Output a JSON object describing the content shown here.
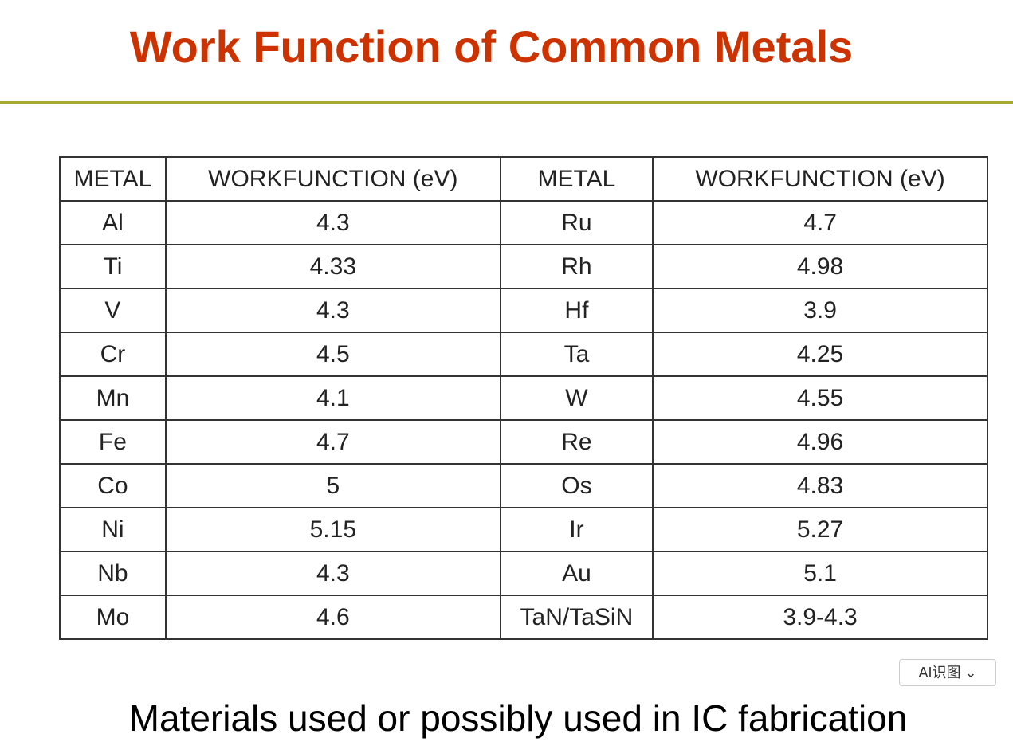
{
  "header": {
    "title": "Work Function of Common Metals"
  },
  "table": {
    "headers": [
      "METAL",
      "WORKFUNCTION (eV)",
      "METAL",
      "WORKFUNCTION (eV)"
    ],
    "rows": [
      [
        "Al",
        "4.3",
        "Ru",
        "4.7"
      ],
      [
        "Ti",
        "4.33",
        "Rh",
        "4.98"
      ],
      [
        "V",
        "4.3",
        "Hf",
        "3.9"
      ],
      [
        "Cr",
        "4.5",
        "Ta",
        "4.25"
      ],
      [
        "Mn",
        "4.1",
        "W",
        "4.55"
      ],
      [
        "Fe",
        "4.7",
        "Re",
        "4.96"
      ],
      [
        "Co",
        "5",
        "Os",
        "4.83"
      ],
      [
        "Ni",
        "5.15",
        "Ir",
        "5.27"
      ],
      [
        "Nb",
        "4.3",
        "Au",
        "5.1"
      ],
      [
        "Mo",
        "4.6",
        "TaN/TaSiN",
        "3.9-4.3"
      ]
    ]
  },
  "badge": {
    "label": "AI识图"
  },
  "caption": "Materials used or possibly used in IC fabrication"
}
